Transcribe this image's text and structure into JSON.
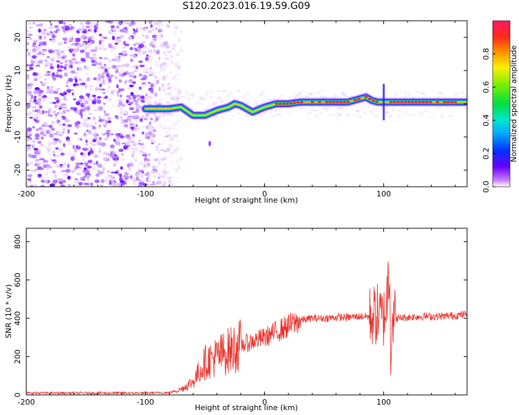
{
  "title": "S120.2023.016.19.59.G09",
  "chart_data": [
    {
      "type": "heatmap",
      "xlabel": "Height of straight line (km)",
      "ylabel": "Frequency (Hz)",
      "xlim": [
        -200,
        170
      ],
      "ylim": [
        -25,
        25
      ],
      "xticks": [
        -200,
        -100,
        0,
        100
      ],
      "yticks": [
        -20,
        -10,
        0,
        10,
        20
      ],
      "colorbar": {
        "label": "Normalized spectral amplitude",
        "range": [
          0,
          1
        ],
        "ticks": [
          "0.0",
          "0.2",
          "0.4",
          "0.6",
          "0.8"
        ]
      },
      "ridge": {
        "description_x": [
          -100,
          -90,
          -80,
          -70,
          -60,
          -50,
          -40,
          -30,
          -25,
          -20,
          -10,
          0,
          10,
          20,
          30,
          50,
          70,
          80,
          85,
          90,
          95,
          100,
          110,
          130,
          150,
          170
        ],
        "freq": [
          -1.5,
          -1.5,
          -1.5,
          -1.0,
          -3.5,
          -3.5,
          -2.0,
          -1.0,
          0.0,
          -0.5,
          -2.5,
          -1.0,
          0.0,
          0.0,
          0.5,
          0.5,
          0.5,
          1.5,
          2.0,
          1.0,
          0.5,
          0.5,
          0.5,
          0.5,
          0.5,
          0.5
        ]
      }
    },
    {
      "type": "line",
      "xlabel": "Height of straight line (km)",
      "ylabel": "SNR (10 * v/v)",
      "xlim": [
        -200,
        170
      ],
      "ylim": [
        0,
        870
      ],
      "xticks": [
        -200,
        -100,
        0,
        100
      ],
      "yticks": [
        0,
        200,
        400,
        600,
        800
      ],
      "color": "#e8352e",
      "series": [
        {
          "x": [
            -200,
            -150,
            -100,
            -80,
            -70,
            -60,
            -50,
            -40,
            -30,
            -20,
            -10,
            0,
            10,
            20,
            30,
            40,
            50,
            60,
            70,
            80,
            90,
            95,
            100,
            103,
            105,
            106,
            107,
            110,
            120,
            130,
            140,
            150,
            160,
            170
          ],
          "y": [
            10,
            10,
            10,
            12,
            30,
            70,
            170,
            200,
            230,
            260,
            280,
            300,
            330,
            360,
            390,
            400,
            400,
            405,
            405,
            410,
            410,
            420,
            400,
            500,
            800,
            100,
            420,
            400,
            405,
            410,
            410,
            410,
            415,
            420
          ]
        }
      ]
    }
  ]
}
